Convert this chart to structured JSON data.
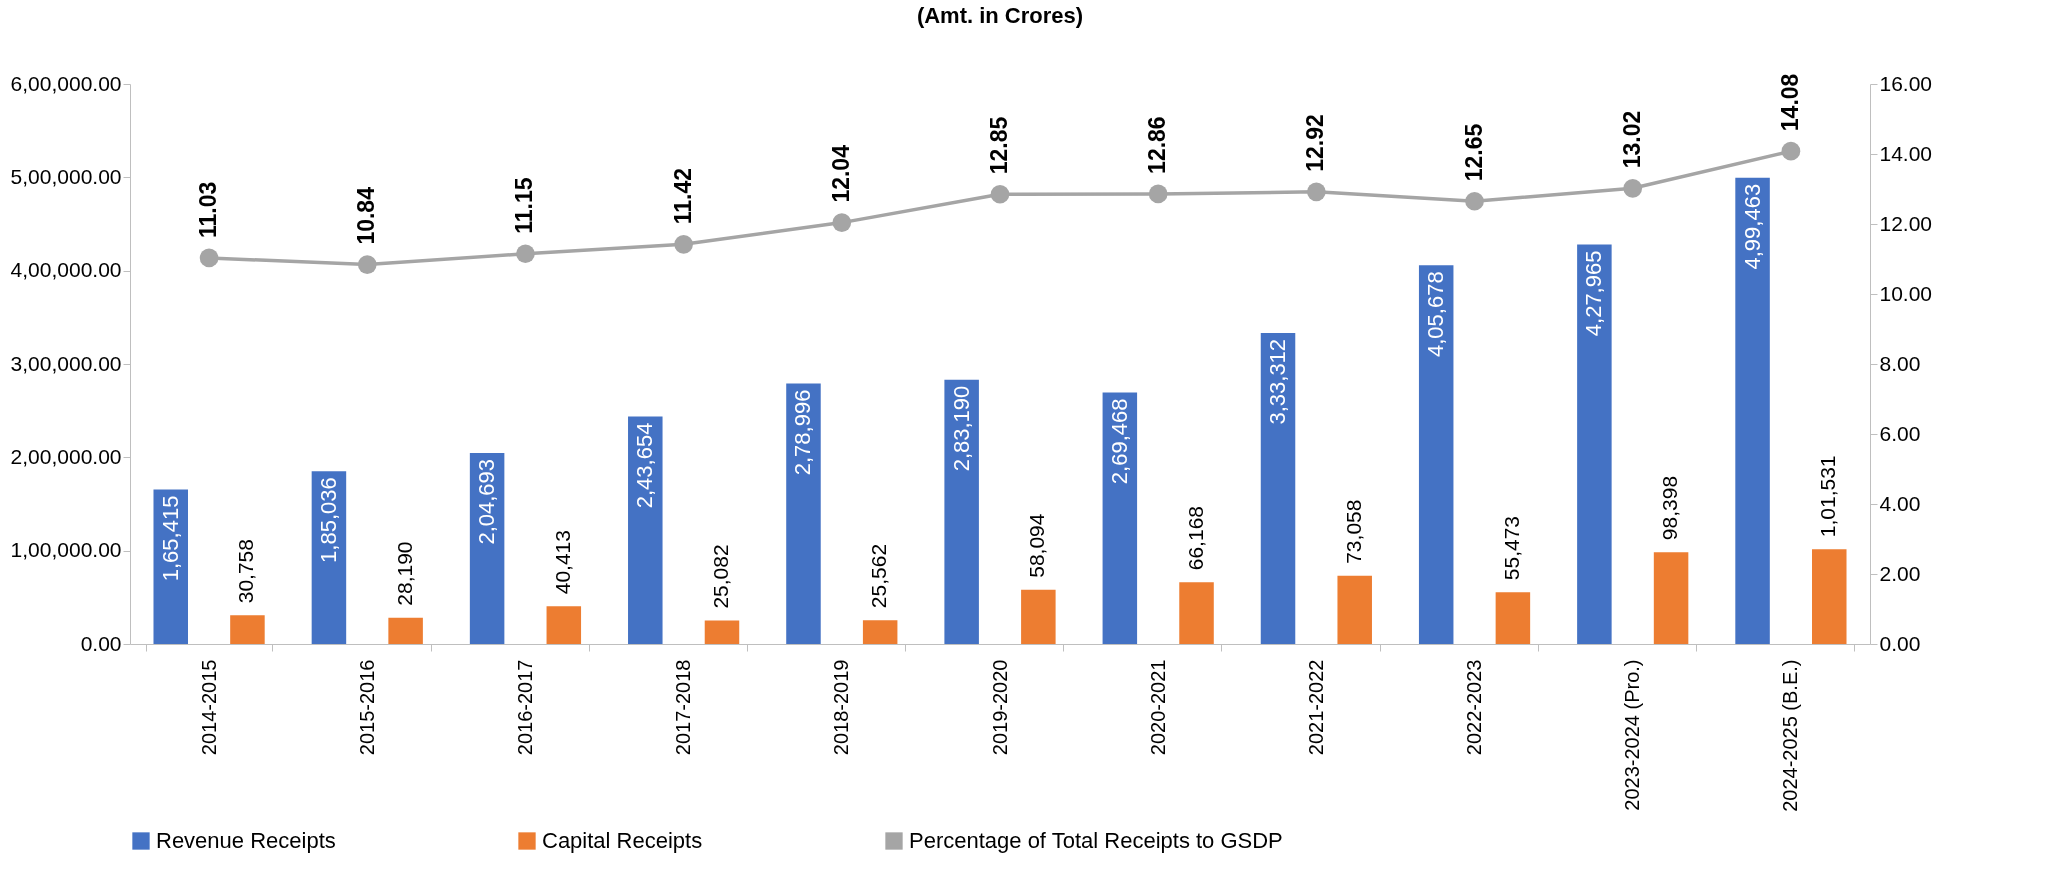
{
  "chart_data": {
    "type": "bar",
    "title": "(Amt. in Crores)",
    "categories": [
      "2014-2015",
      "2015-2016",
      "2016-2017",
      "2017-2018",
      "2018-2019",
      "2019-2020",
      "2020-2021",
      "2021-2022",
      "2022-2023",
      "2023-2024 (Pro.)",
      "2024-2025 (B.E.)"
    ],
    "series": [
      {
        "name": "Revenue Receipts",
        "color": "#4472c4",
        "values": [
          165415,
          185036,
          204693,
          243654,
          278996,
          283190,
          269468,
          333312,
          405678,
          427965,
          499463
        ],
        "value_labels": [
          "1,65,415",
          "1,85,036",
          "2,04,693",
          "2,43,654",
          "2,78,996",
          "2,83,190",
          "2,69,468",
          "3,33,312",
          "4,05,678",
          "4,27,965",
          "4,99,463"
        ]
      },
      {
        "name": "Capital Receipts",
        "color": "#ed7d31",
        "values": [
          30758,
          28190,
          40413,
          25082,
          25562,
          58094,
          66168,
          73058,
          55473,
          98398,
          101531
        ],
        "value_labels": [
          "30,758",
          "28,190",
          "40,413",
          "25,082",
          "25,562",
          "58,094",
          "66,168",
          "73,058",
          "55,473",
          "98,398",
          "1,01,531"
        ]
      },
      {
        "name": "Percentage of Total Receipts to GSDP",
        "type": "line",
        "axis": "y2",
        "color": "#a5a5a5",
        "marker": "circle",
        "values": [
          11.03,
          10.84,
          11.15,
          11.42,
          12.04,
          12.85,
          12.86,
          12.92,
          12.65,
          13.02,
          14.08
        ],
        "value_labels": [
          "11.03",
          "10.84",
          "11.15",
          "11.42",
          "12.04",
          "12.85",
          "12.86",
          "12.92",
          "12.65",
          "13.02",
          "14.08"
        ]
      }
    ],
    "ylim": [
      0,
      600000
    ],
    "yticks": [
      {
        "value": 0,
        "label": "0.00"
      },
      {
        "value": 100000,
        "label": "1,00,000.00"
      },
      {
        "value": 200000,
        "label": "2,00,000.00"
      },
      {
        "value": 300000,
        "label": "3,00,000.00"
      },
      {
        "value": 400000,
        "label": "4,00,000.00"
      },
      {
        "value": 500000,
        "label": "5,00,000.00"
      },
      {
        "value": 600000,
        "label": "6,00,000.00"
      }
    ],
    "y2lim": [
      0,
      16
    ],
    "y2ticks": [
      {
        "value": 0,
        "label": "0.00"
      },
      {
        "value": 2,
        "label": "2.00"
      },
      {
        "value": 4,
        "label": "4.00"
      },
      {
        "value": 6,
        "label": "6.00"
      },
      {
        "value": 8,
        "label": "8.00"
      },
      {
        "value": 10,
        "label": "10.00"
      },
      {
        "value": 12,
        "label": "12.00"
      },
      {
        "value": 14,
        "label": "14.00"
      },
      {
        "value": 16,
        "label": "16.00"
      }
    ],
    "grid": false,
    "legend": "bottom"
  }
}
